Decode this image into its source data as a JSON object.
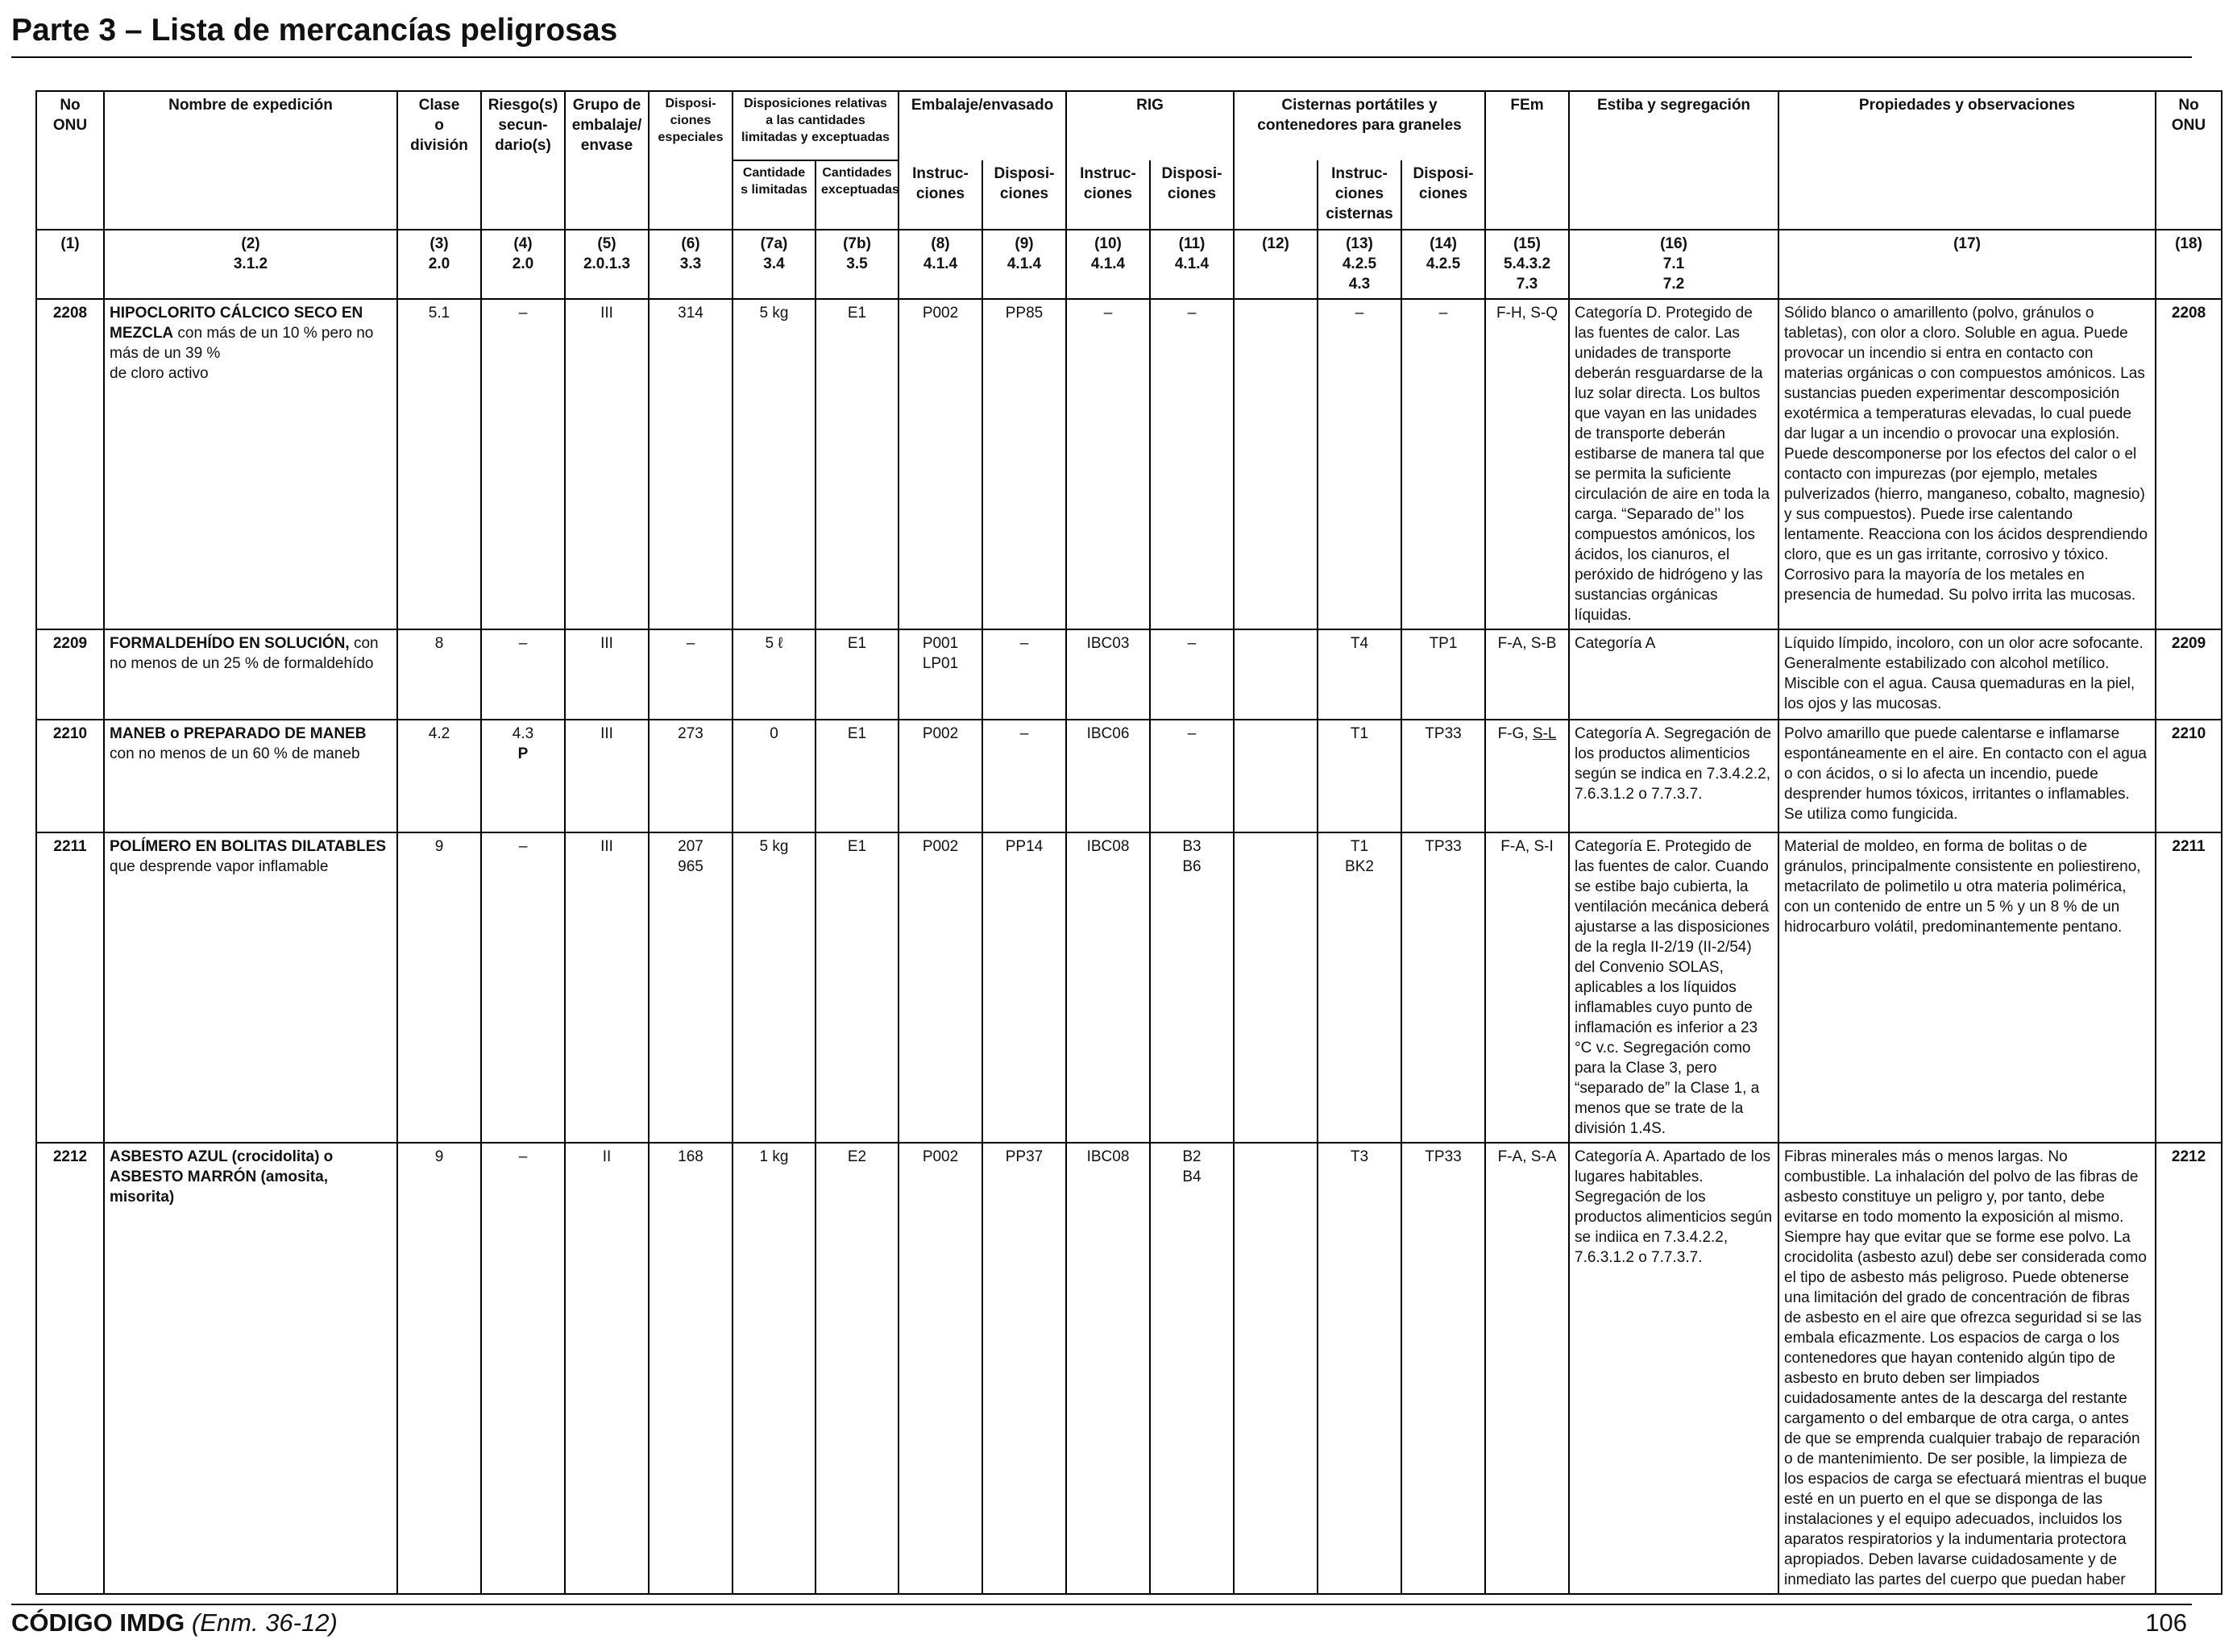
{
  "page": {
    "title": "Parte 3 – Lista de mercancías peligrosas",
    "footer_code": "CÓDIGO IMDG",
    "footer_amendment": "(Enm. 36-12)",
    "page_number": "106"
  },
  "table": {
    "headers": {
      "no_onu": "No\nONU",
      "nombre": "Nombre de expedición",
      "clase": "Clase\no\ndivisión",
      "riesgos": "Riesgo(s)\nsecun-\ndario(s)",
      "grupo": "Grupo de\nembalaje/\nenvase",
      "dispo_esp": "Disposi-\nciones\nespeciales",
      "disp_rel": "Disposiciones relativas\na las cantidades\nlimitadas y exceptuadas",
      "cant_lim": "Cantidade\ns limitadas",
      "cant_exc": "Cantidades\nexceptuadas",
      "embalaje": "Embalaje/envasado",
      "emb_instr": "Instruc-\nciones",
      "emb_disp": "Disposi-\nciones",
      "rig": "RIG",
      "rig_instr": "Instruc-\nciones",
      "rig_disp": "Disposi-\nciones",
      "cisternas": "Cisternas portátiles y\ncontenedores para graneles",
      "cis_instr": "Instruc-\nciones\ncisternas",
      "cis_disp": "Disposi-\nciones",
      "fem": "FEm",
      "estiba": "Estiba y segregación",
      "propiedades": "Propiedades y observaciones",
      "no_onu_end": "No\nONU"
    },
    "refs": [
      "(1)",
      "(2)\n3.1.2",
      "(3)\n2.0",
      "(4)\n2.0",
      "(5)\n2.0.1.3",
      "(6)\n3.3",
      "(7a)\n3.4",
      "(7b)\n3.5",
      "(8)\n4.1.4",
      "(9)\n4.1.4",
      "(10)\n4.1.4",
      "(11)\n4.1.4",
      "(12)",
      "(13)\n4.2.5\n4.3",
      "(14)\n4.2.5",
      "(15)\n5.4.3.2\n7.3",
      "(16)\n7.1\n7.2",
      "(17)",
      "(18)"
    ],
    "rows": [
      {
        "un": "2208",
        "name_bold": "HIPOCLORITO CÁLCICO SECO EN MEZCLA",
        "name_rest": " con más de un 10 % pero no más de un 39 %\nde cloro activo",
        "clase": "5.1",
        "riesgo": "–",
        "riesgo_p": "",
        "grupo": "III",
        "dispo": "314",
        "cant_lim": "5 kg",
        "cant_exc": "E1",
        "emb_instr": "P002",
        "emb_disp": "PP85",
        "rig_instr": "–",
        "rig_disp": "–",
        "col12": "",
        "cis_instr": "–",
        "cis_disp": "–",
        "fem": "F-H, S-Q",
        "estiba": "Categoría D. Protegido de las fuentes de calor. Las unidades de transporte deberán resguardarse de la luz solar directa. Los bultos que vayan en las unidades de transporte deberán estibarse de manera tal que se permita la suficiente circulación de aire en toda la carga. “Separado de’’ los compuestos amónicos, los ácidos, los cianuros, el peróxido de hidrógeno y las sustancias orgánicas líquidas.",
        "propiedades": "Sólido blanco o amarillento (polvo, gránulos o tabletas), con olor a cloro. Soluble en agua. Puede provocar un incendio si entra en contacto con materias orgánicas o con compuestos amónicos. Las sustancias pueden experimentar descomposición exotérmica a temperaturas elevadas, lo cual puede dar lugar a un incendio o provocar una explosión. Puede descomponerse por los efectos del calor o el contacto con impurezas (por ejemplo, metales pulverizados (hierro, manganeso, cobalto, magnesio) y sus compuestos). Puede irse calentando lentamente. Reacciona con los ácidos desprendiendo cloro, que es un gas irritante, corrosivo y tóxico. Corrosivo para la mayoría de los metales en presencia de humedad. Su polvo irrita las mucosas."
      },
      {
        "un": "2209",
        "name_bold": "FORMALDEHÍDO EN SOLUCIÓN,",
        "name_rest": " con no menos de un 25 % de formaldehído",
        "clase": "8",
        "riesgo": "–",
        "riesgo_p": "",
        "grupo": "III",
        "dispo": "–",
        "cant_lim": "5 ℓ",
        "cant_exc": "E1",
        "emb_instr": "P001\nLP01",
        "emb_disp": "–",
        "rig_instr": "IBC03",
        "rig_disp": "–",
        "col12": "",
        "cis_instr": "T4",
        "cis_disp": "TP1",
        "fem": "F-A, S-B",
        "estiba": "Categoría A",
        "propiedades": "Líquido límpido, incoloro, con un olor acre sofocante. Generalmente estabilizado con alcohol metílico. Miscible con el agua. Causa quemaduras en la piel, los ojos y las mucosas."
      },
      {
        "un": "2210",
        "name_bold": "MANEB o PREPARADO DE MANEB",
        "name_rest": " con no menos de un 60 % de maneb",
        "clase": "4.2",
        "riesgo": "4.3",
        "riesgo_p": "P",
        "grupo": "III",
        "dispo": "273",
        "cant_lim": "0",
        "cant_exc": "E1",
        "emb_instr": "P002",
        "emb_disp": "–",
        "rig_instr": "IBC06",
        "rig_disp": "–",
        "col12": "",
        "cis_instr": "T1",
        "cis_disp": "TP33",
        "fem": "F-G, ",
        "fem_ul": "S-L",
        "estiba": "Categoría A. Segregación de los productos alimenticios según se indica en 7.3.4.2.2, 7.6.3.1.2 o 7.7.3.7.",
        "propiedades": "Polvo amarillo que puede calentarse e inflamarse espontáneamente en el aire. En contacto con el agua o con ácidos, o si lo afecta un incendio, puede desprender humos tóxicos, irritantes o inflamables. Se utiliza como fungicida."
      },
      {
        "un": "2211",
        "name_bold": "POLÍMERO EN BOLITAS DILATABLES",
        "name_rest": " que desprende vapor inflamable",
        "clase": "9",
        "riesgo": "–",
        "riesgo_p": "",
        "grupo": "III",
        "dispo": "207\n965",
        "cant_lim": "5 kg",
        "cant_exc": "E1",
        "emb_instr": "P002",
        "emb_disp": "PP14",
        "rig_instr": "IBC08",
        "rig_disp": "B3\nB6",
        "col12": "",
        "cis_instr": "T1\nBK2",
        "cis_disp": "TP33",
        "fem": "F-A, S-I",
        "estiba": "Categoría E. Protegido de las fuentes de calor. Cuando se estibe bajo cubierta, la ventilación mecánica deberá ajustarse a las disposiciones de la regla II-2/19 (II-2/54) del Convenio SOLAS, aplicables a los líquidos inflamables cuyo punto de inflamación es inferior a 23 °C v.c. Segregación como para la Clase 3, pero “separado de” la Clase 1, a menos que se trate de la división 1.4S.",
        "propiedades": "Material de moldeo, en forma de bolitas o de gránulos, principalmente consistente en poliestireno, metacrilato de polimetilo u otra materia polimérica, con un contenido de entre un 5 % y un 8 % de un hidrocarburo volátil, predominantemente pentano."
      },
      {
        "un": "2212",
        "name_bold": "ASBESTO AZUL",
        "name_rest": " (crocidolita) o ",
        "name_bold2": "ASBESTO MARRÓN",
        "name_rest2": " (amosita, misorita)",
        "clase": "9",
        "riesgo": "–",
        "riesgo_p": "",
        "grupo": "II",
        "dispo": "168",
        "cant_lim": "1 kg",
        "cant_exc": "E2",
        "emb_instr": "P002",
        "emb_disp": "PP37",
        "rig_instr": "IBC08",
        "rig_disp": "B2\nB4",
        "col12": "",
        "cis_instr": "T3",
        "cis_disp": "TP33",
        "fem": "F-A, S-A",
        "estiba": "Categoría A. Apartado de los lugares habitables. Segregación de los productos alimenticios según se indiica en 7.3.4.2.2, 7.6.3.1.2 o 7.7.3.7.",
        "propiedades": "Fibras minerales más o menos largas. No combustible. La inhalación del polvo de las fibras de asbesto constituye un peligro y, por tanto, debe evitarse en todo momento la exposición al mismo. Siempre hay que evitar que se forme ese polvo. La crocidolita (asbesto azul) debe ser considerada como el tipo de asbesto más peligroso. Puede obtenerse una limitación del grado de concentración de fibras de asbesto en el aire que ofrezca seguridad si se las embala eficazmente. Los espacios de carga o los contenedores que hayan contenido algún tipo de asbesto en bruto deben ser limpiados cuidadosamente antes de la descarga del restante cargamento o del embarque de otra carga, o antes de que se emprenda cualquier trabajo de reparación o de mantenimiento. De ser posible, la limpieza de los espacios de carga se efectuará mientras el buque esté en un puerto en el que se disponga de las instalaciones y el equipo adecuados, incluidos los aparatos respiratorios y la indumentaria protectora apropiados. Deben lavarse cuidadosamente y de inmediato las partes del cuerpo que puedan haber"
      }
    ]
  }
}
